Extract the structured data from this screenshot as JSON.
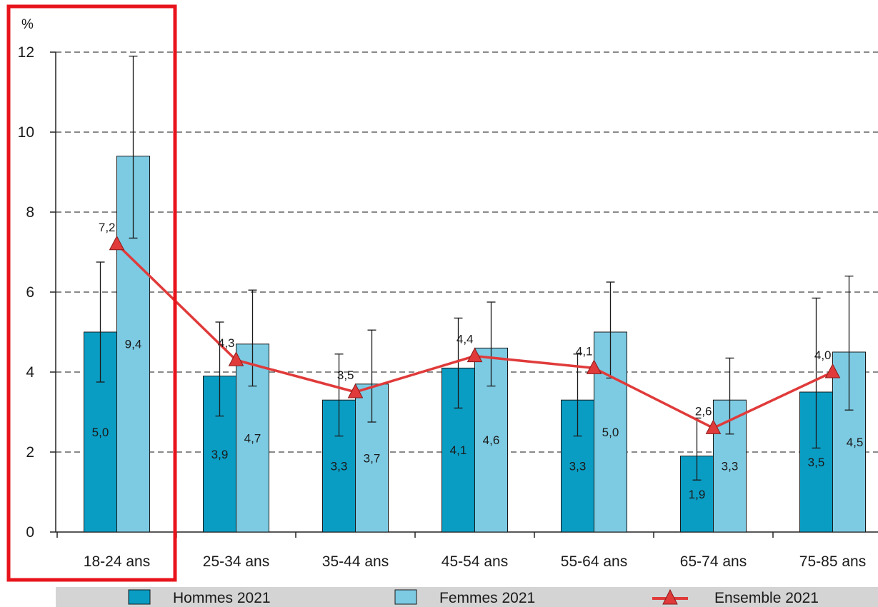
{
  "chart_data": {
    "type": "bar",
    "y_unit": "%",
    "categories": [
      "18-24 ans",
      "25-34 ans",
      "35-44 ans",
      "45-54 ans",
      "55-64 ans",
      "65-74 ans",
      "75-85 ans"
    ],
    "ylim": [
      0,
      12
    ],
    "yticks": [
      0,
      2,
      4,
      6,
      8,
      10,
      12
    ],
    "grid": "horizontal dashed",
    "series": [
      {
        "name": "Hommes 2021",
        "kind": "bar",
        "color": "#0a9dc4",
        "values": [
          5.0,
          3.9,
          3.3,
          4.1,
          3.3,
          1.9,
          3.5
        ],
        "labels": [
          "5,0",
          "3,9",
          "3,3",
          "4,1",
          "3,3",
          "1,9",
          "3,5"
        ],
        "ci_low": [
          3.75,
          2.9,
          2.4,
          3.1,
          2.4,
          1.3,
          2.1
        ],
        "ci_high": [
          6.75,
          5.25,
          4.45,
          5.35,
          4.45,
          2.85,
          5.85
        ]
      },
      {
        "name": "Femmes 2021",
        "kind": "bar",
        "color": "#7dcbe3",
        "values": [
          9.4,
          4.7,
          3.7,
          4.6,
          5.0,
          3.3,
          4.5
        ],
        "labels": [
          "9,4",
          "4,7",
          "3,7",
          "4,6",
          "5,0",
          "3,3",
          "4,5"
        ],
        "ci_low": [
          7.35,
          3.65,
          2.75,
          3.65,
          3.85,
          2.45,
          3.05
        ],
        "ci_high": [
          11.9,
          6.05,
          5.05,
          5.75,
          6.25,
          4.35,
          6.4
        ]
      },
      {
        "name": "Ensemble 2021",
        "kind": "line",
        "color": "#e03a3a",
        "marker": "triangle",
        "values": [
          7.2,
          4.3,
          3.5,
          4.4,
          4.1,
          2.6,
          4.0
        ],
        "labels": [
          "7,2",
          "4,3",
          "3,5",
          "4,4",
          "4,1",
          "2,6",
          "4,0"
        ]
      }
    ],
    "highlight_category": "18-24 ans",
    "highlight_color": "#e8141b",
    "legend": {
      "position": "bottom",
      "background": "#d4d4d4",
      "items": [
        {
          "label": "Hommes 2021",
          "symbol": "box",
          "color": "#0a9dc4"
        },
        {
          "label": "Femmes 2021",
          "symbol": "box",
          "color": "#7dcbe3"
        },
        {
          "label": "Ensemble 2021",
          "symbol": "line-triangle",
          "color": "#e03a3a"
        }
      ]
    }
  }
}
